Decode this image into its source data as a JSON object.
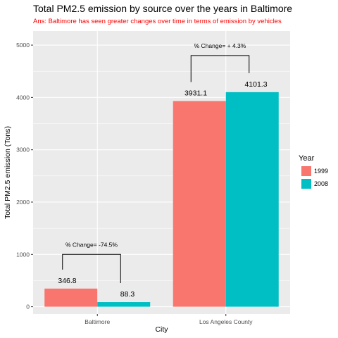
{
  "chart_data": {
    "type": "bar",
    "title": "Total PM2.5 emission by source over the years in Baltimore",
    "subtitle": "Ans: Baltimore has seen greater changes over time in terms of emission by vehicles",
    "xlabel": "City",
    "ylabel": "Total PM2.5 emission (Tons)",
    "categories": [
      "Baltimore",
      "Los Angeles County"
    ],
    "series": [
      {
        "name": "1999",
        "values": [
          346.8,
          3931.1
        ],
        "labels": [
          "346.8",
          "3931.1"
        ]
      },
      {
        "name": "2008",
        "values": [
          88.3,
          4101.3
        ],
        "labels": [
          "88.3",
          "4101.3"
        ]
      }
    ],
    "ylim": [
      -140,
      5270
    ],
    "yticks": [
      0,
      1000,
      2000,
      3000,
      4000,
      5000
    ],
    "ytick_labels": [
      "0",
      "1000",
      "2000",
      "3000",
      "4000",
      "5000"
    ],
    "legend_title": "Year",
    "legend_position": "right",
    "grid": true,
    "annotations": [
      {
        "text": "% Change= -74.5%",
        "category": "Baltimore",
        "bracket_y": 1000
      },
      {
        "text": "% Change= + 4.3%",
        "category": "Los Angeles County",
        "bracket_y": 4800
      }
    ],
    "colors": {
      "1999": "#F8766D",
      "2008": "#00BFC4",
      "panel": "#EBEBEB",
      "subtitle": "#FF0000"
    }
  }
}
